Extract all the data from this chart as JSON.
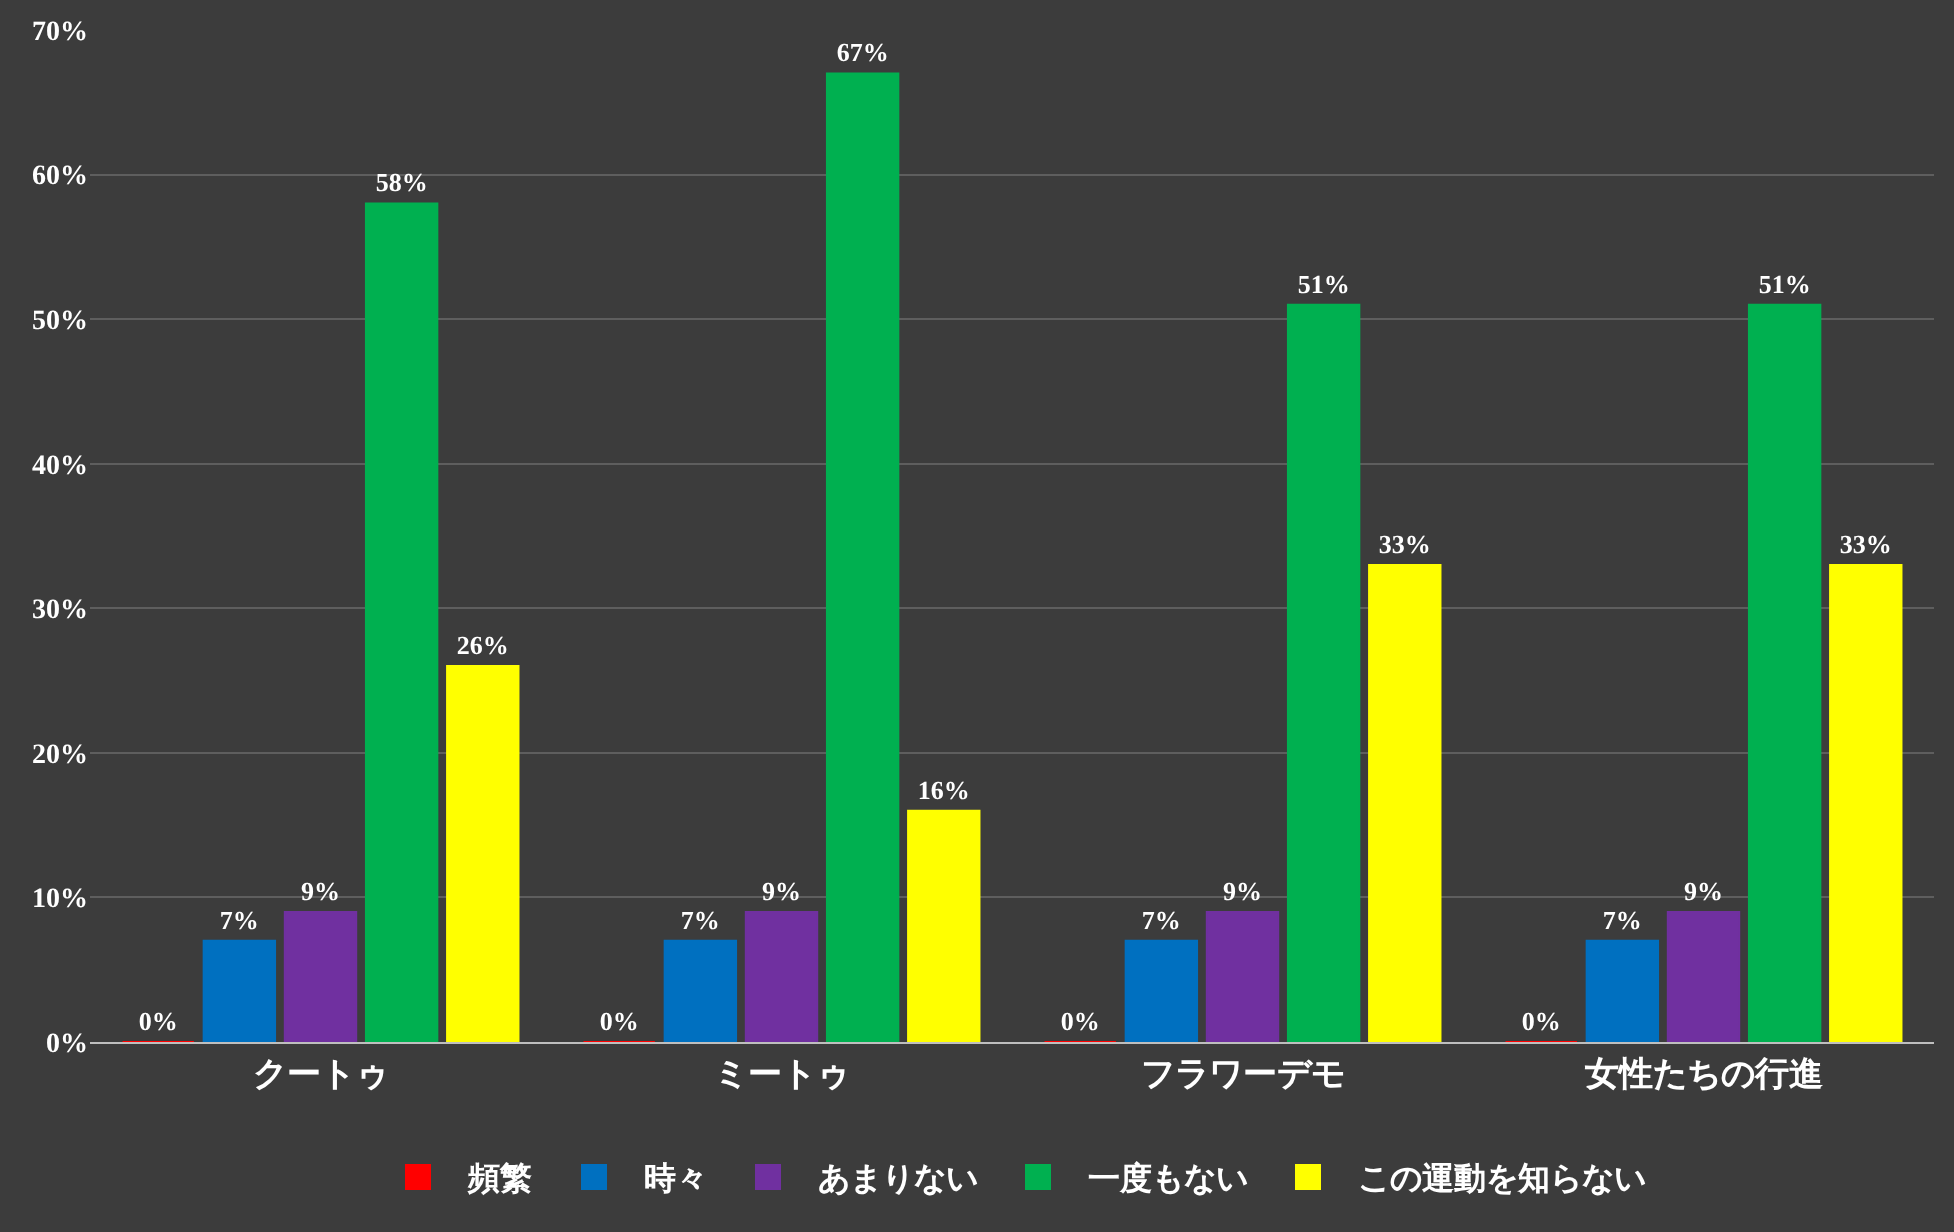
{
  "chart_data": {
    "type": "bar",
    "categories": [
      "クートゥ",
      "ミートゥ",
      "フラワーデモ",
      "女性たちの行進"
    ],
    "series": [
      {
        "name": "頻繁",
        "color": "#ff0000",
        "values": [
          0,
          0,
          0,
          0
        ],
        "value_labels": [
          "0%",
          "0%",
          "0%",
          "0%"
        ]
      },
      {
        "name": "時々",
        "color": "#0070c0",
        "values": [
          7,
          7,
          7,
          7
        ],
        "value_labels": [
          "7%",
          "7%",
          "7%",
          "7%"
        ]
      },
      {
        "name": "あまりない",
        "color": "#7030a0",
        "values": [
          9,
          9,
          9,
          9
        ],
        "value_labels": [
          "9%",
          "9%",
          "9%",
          "9%"
        ]
      },
      {
        "name": "一度もない",
        "color": "#00b050",
        "values": [
          58,
          67,
          51,
          51
        ],
        "value_labels": [
          "58%",
          "67%",
          "51%",
          "51%"
        ]
      },
      {
        "name": "この運動を知らない",
        "color": "#ffff00",
        "values": [
          26,
          16,
          33,
          33
        ],
        "value_labels": [
          "26%",
          "16%",
          "33%",
          "33%"
        ]
      }
    ],
    "ylim": [
      0,
      70
    ],
    "yticks": [
      {
        "value": 0,
        "label": "0%"
      },
      {
        "value": 10,
        "label": "10%"
      },
      {
        "value": 20,
        "label": "20%"
      },
      {
        "value": 30,
        "label": "30%"
      },
      {
        "value": 40,
        "label": "40%"
      },
      {
        "value": 50,
        "label": "50%"
      },
      {
        "value": 60,
        "label": "60%"
      },
      {
        "value": 70,
        "label": "70%"
      }
    ],
    "grid": "y",
    "legend": "bottom"
  }
}
